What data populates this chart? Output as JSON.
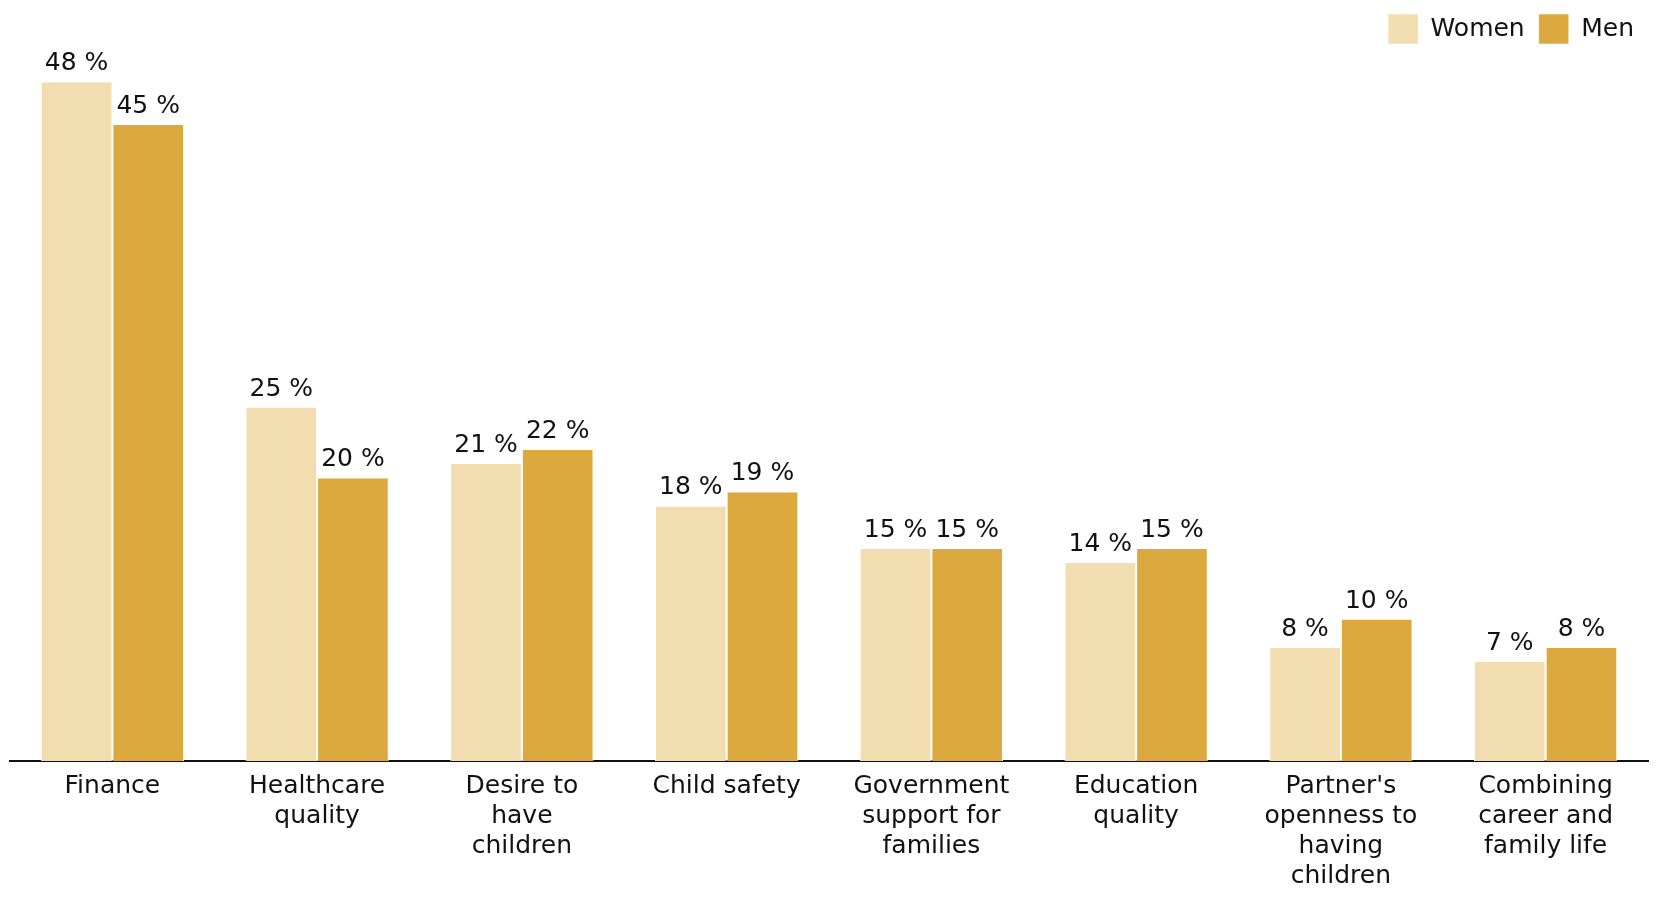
{
  "chart_data": {
    "type": "bar",
    "categories": [
      "Finance",
      "Healthcare quality",
      "Desire to have children",
      "Child safety",
      "Government support for families",
      "Education quality",
      "Partner's openness to having children",
      "Combining career and family life"
    ],
    "series": [
      {
        "name": "Women",
        "color": "#f1ddb0",
        "values": [
          48,
          25,
          21,
          18,
          15,
          14,
          8,
          7
        ],
        "value_labels": [
          "48 %",
          "25 %",
          "21 %",
          "18 %",
          "15 %",
          "14 %",
          "8 %",
          "7 %"
        ]
      },
      {
        "name": "Men",
        "color": "#dba93d",
        "values": [
          45,
          20,
          22,
          19,
          15,
          15,
          10,
          8
        ],
        "value_labels": [
          "45 %",
          "20 %",
          "22 %",
          "19 %",
          "15 %",
          "15 %",
          "10 %",
          "8 %"
        ]
      }
    ],
    "legend": "top right",
    "grid": false
  }
}
